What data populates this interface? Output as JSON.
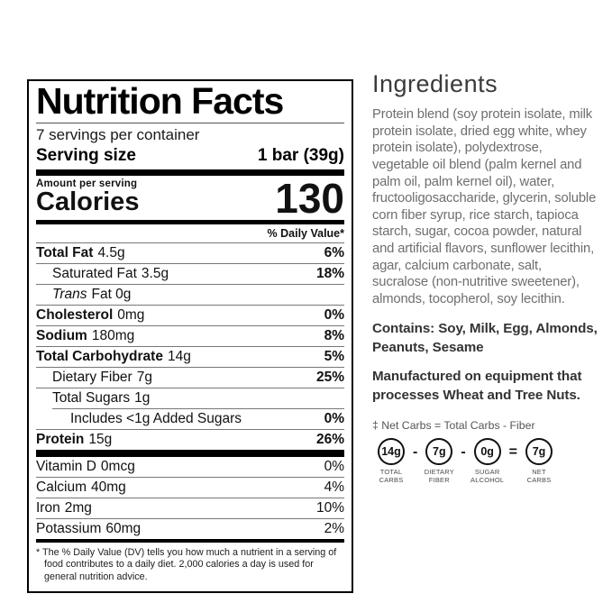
{
  "colors": {
    "ink": "#111111",
    "muted_text": "#6e6e6e",
    "hairline": "#777777"
  },
  "label": {
    "title": "Nutrition Facts",
    "servings_per_container": "7 servings per container",
    "serving_size_label": "Serving size",
    "serving_size_value": "1 bar (39g)",
    "amount_per_serving": "Amount per serving",
    "calories_label": "Calories",
    "calories_value": "130",
    "daily_value_header": "% Daily Value*",
    "rows": [
      {
        "name": "Total Fat",
        "amount": "4.5g",
        "dv": "6%"
      },
      {
        "name": "Saturated Fat",
        "amount": "3.5g",
        "dv": "18%"
      },
      {
        "name": "Trans",
        "amount": "Fat 0g",
        "dv": ""
      },
      {
        "name": "Cholesterol",
        "amount": "0mg",
        "dv": "0%"
      },
      {
        "name": "Sodium",
        "amount": "180mg",
        "dv": "8%"
      },
      {
        "name": "Total Carbohydrate",
        "amount": "14g",
        "dv": "5%"
      },
      {
        "name": "Dietary Fiber",
        "amount": "7g",
        "dv": "25%"
      },
      {
        "name": "Total Sugars",
        "amount": "1g",
        "dv": ""
      },
      {
        "name": "Includes <1g Added Sugars",
        "amount": "",
        "dv": "0%"
      },
      {
        "name": "Protein",
        "amount": "15g",
        "dv": "26%"
      }
    ],
    "micros": [
      {
        "name": "Vitamin D",
        "amount": "0mcg",
        "dv": "0%"
      },
      {
        "name": "Calcium",
        "amount": "40mg",
        "dv": "4%"
      },
      {
        "name": "Iron",
        "amount": "2mg",
        "dv": "10%"
      },
      {
        "name": "Potassium",
        "amount": "60mg",
        "dv": "2%"
      }
    ],
    "footnote": "* The % Daily Value (DV) tells you how much a nutrient in a serving of food contributes to a daily diet. 2,000 calories a day is used for general nutrition advice."
  },
  "ingredients": {
    "heading": "Ingredients",
    "body": "Protein blend (soy protein isolate, milk protein isolate, dried egg white, whey protein isolate), polydextrose, vegetable oil blend (palm kernel and palm oil, palm kernel oil), water, fructooligosaccharide, glycerin, soluble corn fiber syrup, rice starch, tapioca starch, sugar, cocoa powder, natural and artificial flavors, sunflower lecithin, agar, calcium carbonate, salt, sucralose (non-nutritive sweetener), almonds, tocopherol, soy lecithin.",
    "contains": "Contains: Soy, Milk, Egg, Almonds, Peanuts, Sesame",
    "manufactured": "Manufactured on equipment that processes Wheat and Tree Nuts.",
    "net_carbs_note": "‡ Net Carbs = Total Carbs - Fiber",
    "net_carbs": [
      {
        "value": "14g",
        "label1": "TOTAL",
        "label2": "CARBS",
        "op": "-"
      },
      {
        "value": "7g",
        "label1": "DIETARY",
        "label2": "FIBER",
        "op": "-"
      },
      {
        "value": "0g",
        "label1": "SUGAR",
        "label2": "ALCOHOL",
        "op": "="
      },
      {
        "value": "7g",
        "label1": "NET",
        "label2": "CARBS",
        "op": ""
      }
    ]
  }
}
